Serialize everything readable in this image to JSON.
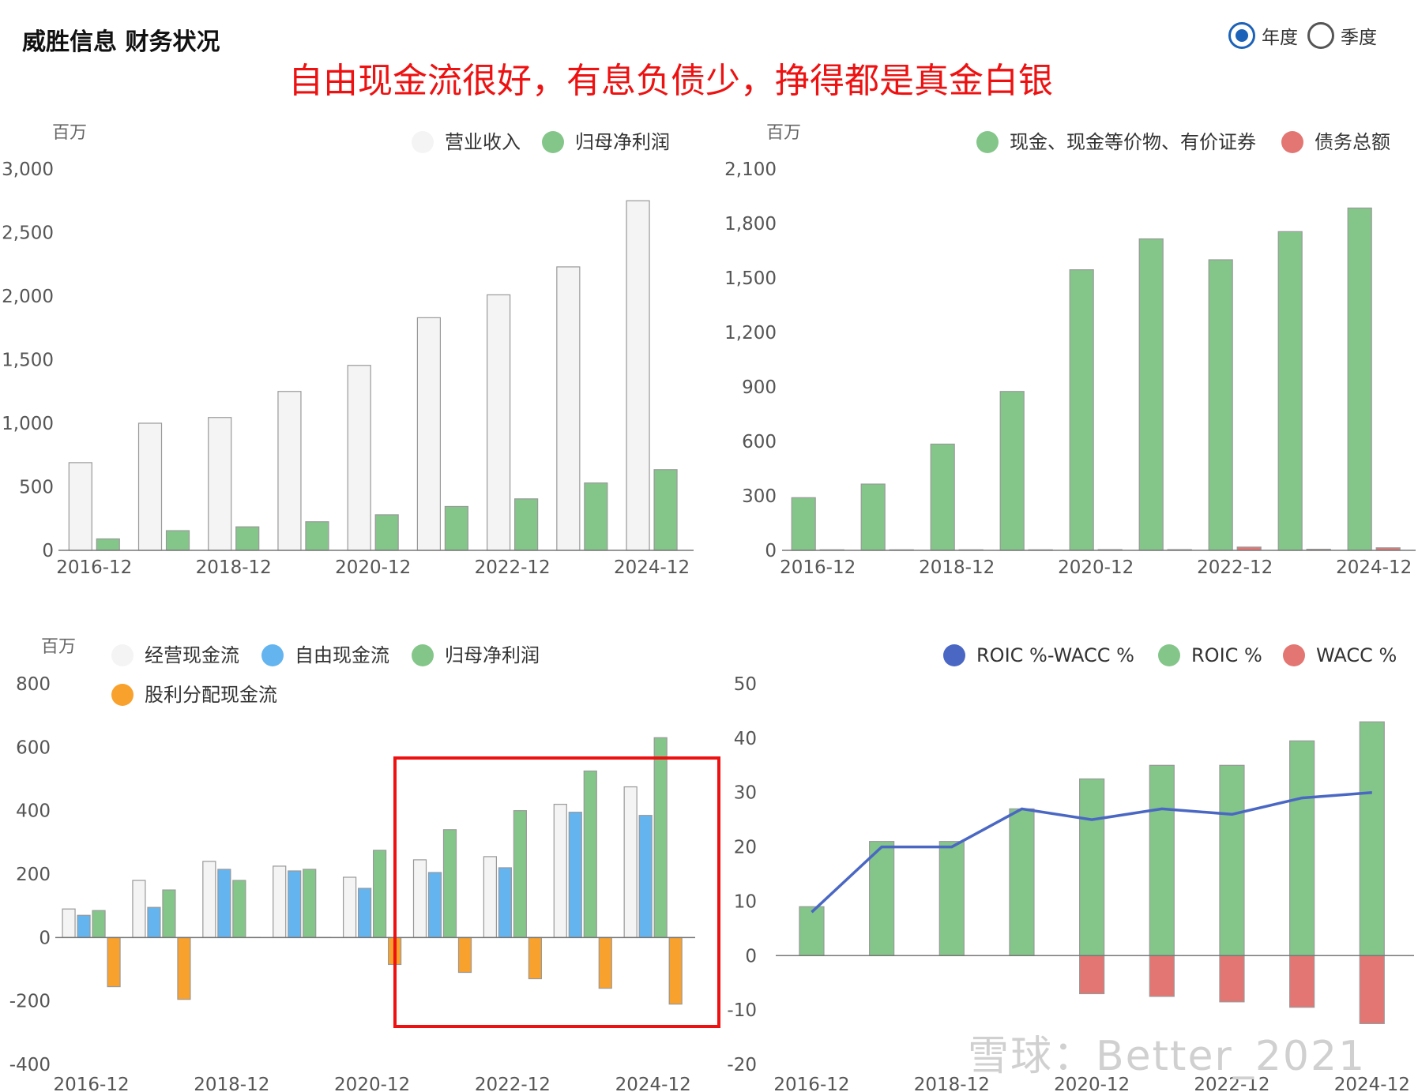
{
  "header": {
    "title": "威胜信息 财务状况",
    "annotation": "自由现金流很好，有息负债少，挣得都是真金白银",
    "period_options": [
      {
        "label": "年度",
        "checked": true
      },
      {
        "label": "季度",
        "checked": false
      }
    ]
  },
  "watermark": "雪球：Better_2021",
  "colors": {
    "revenue": "#f4f4f4",
    "green": "#84c68a",
    "blue": "#64b4f0",
    "orange": "#f9a12d",
    "red": "#e37672",
    "line": "#4a67c3",
    "border": "#999999",
    "highlight": "#ee1111"
  },
  "chart_data": [
    {
      "type": "bar",
      "unit": "百万",
      "categories": [
        "2016-12",
        "2017-12",
        "2018-12",
        "2019-12",
        "2020-12",
        "2021-12",
        "2022-12",
        "2023-12",
        "2024-12"
      ],
      "tick_labels": [
        "2016-12",
        "2018-12",
        "2020-12",
        "2022-12",
        "2024-12"
      ],
      "ylim": [
        0,
        3000
      ],
      "yticks": [
        "0",
        "500",
        "1,000",
        "1,500",
        "2,000",
        "2,500",
        "3,000"
      ],
      "series": [
        {
          "name": "营业收入",
          "color": "#f4f4f4",
          "values": [
            690,
            1000,
            1045,
            1250,
            1455,
            1830,
            2010,
            2230,
            2750
          ]
        },
        {
          "name": "归母净利润",
          "color": "#84c68a",
          "values": [
            90,
            155,
            185,
            225,
            280,
            345,
            405,
            530,
            635
          ]
        }
      ]
    },
    {
      "type": "bar",
      "unit": "百万",
      "categories": [
        "2016-12",
        "2017-12",
        "2018-12",
        "2019-12",
        "2020-12",
        "2021-12",
        "2022-12",
        "2023-12",
        "2024-12"
      ],
      "tick_labels": [
        "2016-12",
        "2018-12",
        "2020-12",
        "2022-12",
        "2024-12"
      ],
      "ylim": [
        0,
        2100
      ],
      "yticks": [
        "0",
        "300",
        "600",
        "900",
        "1,200",
        "1,500",
        "1,800",
        "2,100"
      ],
      "series": [
        {
          "name": "现金、现金等价物、有价证券",
          "color": "#84c68a",
          "values": [
            290,
            365,
            585,
            875,
            1545,
            1715,
            1600,
            1755,
            1885
          ]
        },
        {
          "name": "债务总额",
          "color": "#e37672",
          "values": [
            3,
            3,
            3,
            3,
            4,
            4,
            18,
            6,
            14
          ]
        }
      ]
    },
    {
      "type": "bar",
      "unit": "百万",
      "categories": [
        "2016-12",
        "2017-12",
        "2018-12",
        "2019-12",
        "2020-12",
        "2021-12",
        "2022-12",
        "2023-12",
        "2024-12"
      ],
      "tick_labels": [
        "2016-12",
        "2018-12",
        "2020-12",
        "2022-12",
        "2024-12"
      ],
      "ylim": [
        -400,
        800
      ],
      "yticks": [
        "-400",
        "-200",
        "0",
        "200",
        "400",
        "600",
        "800"
      ],
      "series": [
        {
          "name": "经营现金流",
          "color": "#f4f4f4",
          "values": [
            90,
            180,
            240,
            225,
            190,
            245,
            255,
            420,
            475
          ]
        },
        {
          "name": "自由现金流",
          "color": "#64b4f0",
          "values": [
            70,
            95,
            215,
            210,
            155,
            205,
            220,
            395,
            385
          ]
        },
        {
          "name": "归母净利润",
          "color": "#84c68a",
          "values": [
            85,
            150,
            180,
            215,
            275,
            340,
            400,
            525,
            630
          ]
        },
        {
          "name": "股利分配现金流",
          "color": "#f9a12d",
          "values": [
            -155,
            -195,
            0,
            0,
            -85,
            -110,
            -130,
            -160,
            -210
          ]
        }
      ],
      "highlight_categories": [
        "2021-12",
        "2024-12"
      ]
    },
    {
      "type": "bar",
      "categories": [
        "2016-12",
        "2017-12",
        "2018-12",
        "2019-12",
        "2020-12",
        "2021-12",
        "2022-12",
        "2023-12",
        "2024-12"
      ],
      "tick_labels": [
        "2016-12",
        "2018-12",
        "2020-12",
        "2022-12",
        "2024-12"
      ],
      "ylim": [
        -20,
        50
      ],
      "yticks": [
        "-20",
        "-10",
        "0",
        "10",
        "20",
        "30",
        "40",
        "50"
      ],
      "series": [
        {
          "name": "ROIC %-WACC %",
          "color": "#4a67c3",
          "kind": "line",
          "values": [
            8,
            20,
            20,
            27,
            25,
            27,
            26,
            29,
            30
          ]
        },
        {
          "name": "ROIC %",
          "color": "#84c68a",
          "values": [
            9,
            21,
            21,
            27,
            32.5,
            35,
            35,
            39.5,
            43
          ]
        },
        {
          "name": "WACC %",
          "color": "#e37672",
          "values": [
            0,
            0,
            0,
            0,
            -7,
            -7.5,
            -8.5,
            -9.5,
            -12.5
          ]
        }
      ]
    }
  ]
}
